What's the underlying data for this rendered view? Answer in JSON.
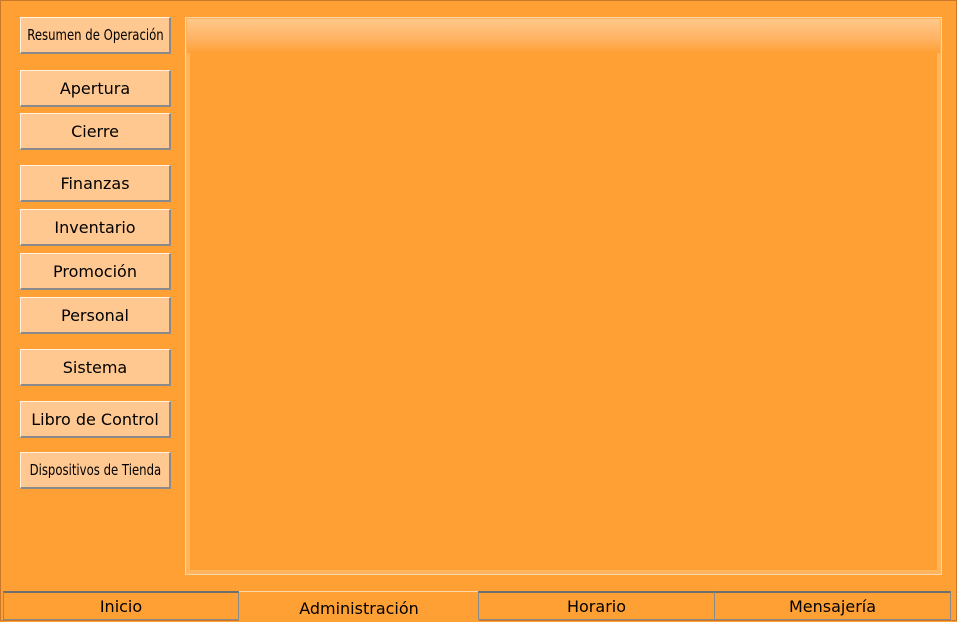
{
  "sidebar": {
    "items": [
      {
        "label": "Resumen de Operación"
      },
      {
        "label": "Apertura"
      },
      {
        "label": "Cierre"
      },
      {
        "label": "Finanzas"
      },
      {
        "label": "Inventario"
      },
      {
        "label": "Promoción"
      },
      {
        "label": "Personal"
      },
      {
        "label": "Sistema"
      },
      {
        "label": "Libro de Control"
      },
      {
        "label": "Dispositivos de Tienda"
      }
    ]
  },
  "tabs": {
    "items": [
      {
        "label": "Inicio",
        "active": false
      },
      {
        "label": "Administración",
        "active": true
      },
      {
        "label": "Horario",
        "active": false
      },
      {
        "label": "Mensajería",
        "active": false
      }
    ]
  }
}
